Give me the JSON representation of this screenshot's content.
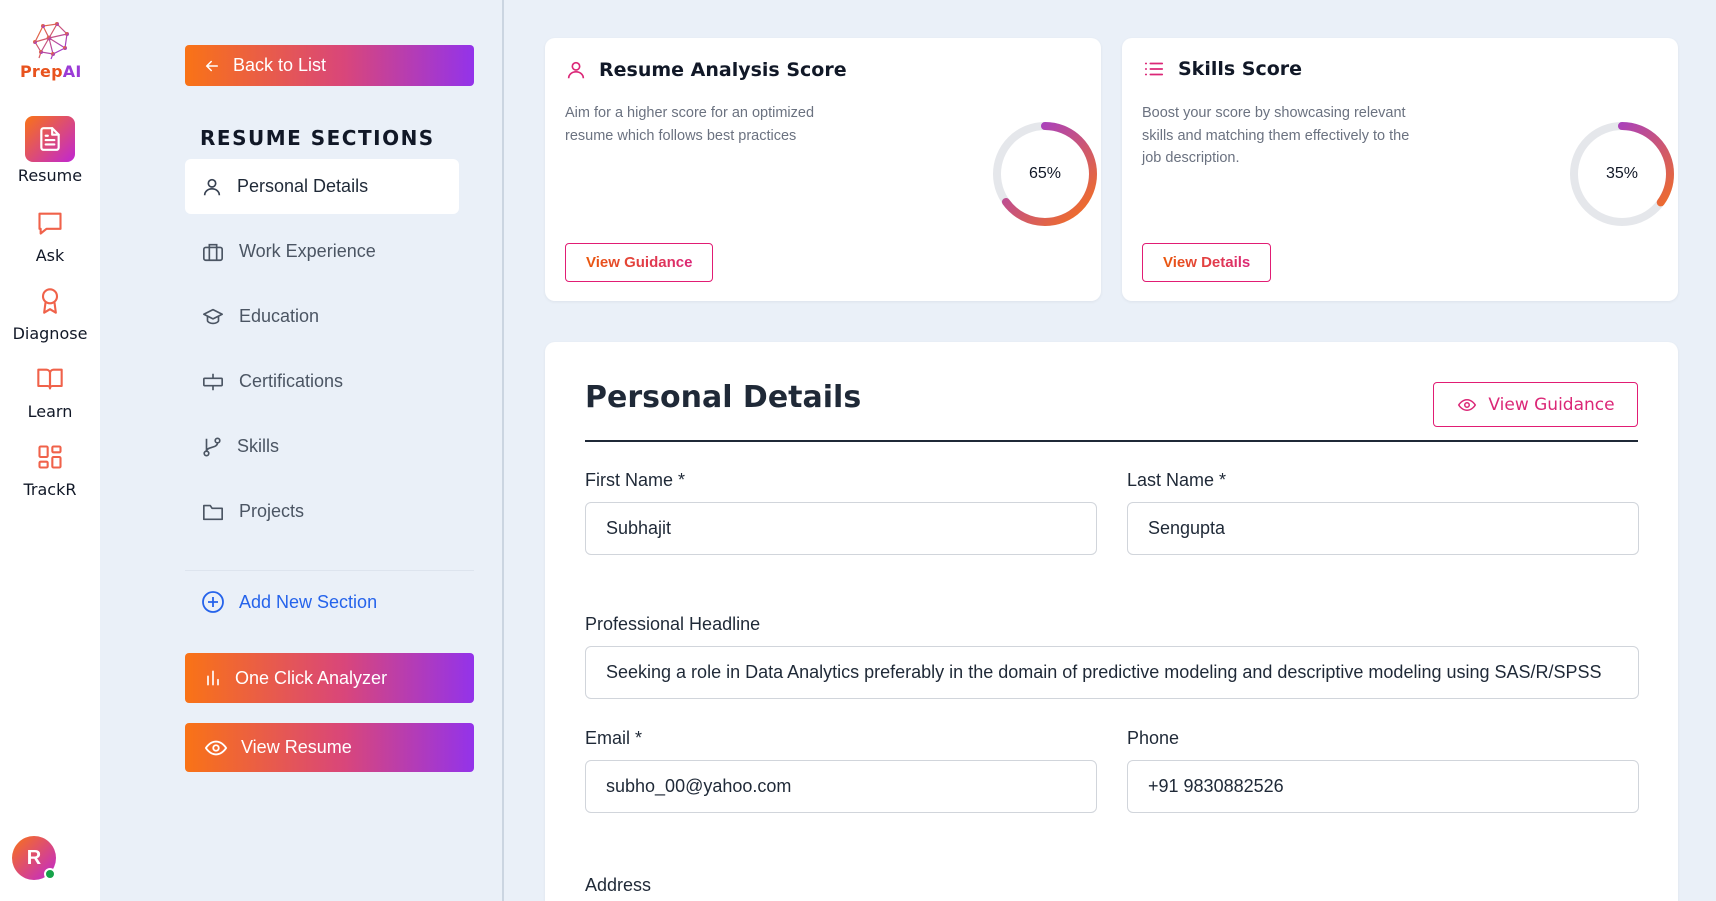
{
  "app": {
    "logo_text_prefix": "Prep",
    "logo_text_suffix": "AI"
  },
  "rail": {
    "items": [
      {
        "label": "Resume",
        "icon": "document-icon",
        "active": true
      },
      {
        "label": "Ask",
        "icon": "chat-icon",
        "active": false
      },
      {
        "label": "Diagnose",
        "icon": "award-icon",
        "active": false
      },
      {
        "label": "Learn",
        "icon": "book-icon",
        "active": false
      },
      {
        "label": "TrackR",
        "icon": "grid-icon",
        "active": false
      }
    ],
    "avatar_initial": "R",
    "avatar_status_color": "#16a34a"
  },
  "sections_panel": {
    "back_label": "Back to List",
    "heading": "RESUME SECTIONS",
    "items": [
      {
        "label": "Personal Details",
        "icon": "user-icon",
        "active": true
      },
      {
        "label": "Work Experience",
        "icon": "briefcase-icon",
        "active": false
      },
      {
        "label": "Education",
        "icon": "graduation-cap-icon",
        "active": false
      },
      {
        "label": "Certifications",
        "icon": "certificate-icon",
        "active": false
      },
      {
        "label": "Skills",
        "icon": "branch-icon",
        "active": false
      },
      {
        "label": "Projects",
        "icon": "folder-icon",
        "active": false
      }
    ],
    "add_section_label": "Add New Section",
    "analyzer_label": "One Click Analyzer",
    "view_resume_label": "View Resume"
  },
  "scores": [
    {
      "title": "Resume Analysis Score",
      "icon": "user-icon",
      "description": "Aim for a higher score for an optimized resume which follows best practices",
      "button_label": "View Guidance",
      "percent_label": "65%",
      "percent_value": 65
    },
    {
      "title": "Skills Score",
      "icon": "list-icon",
      "description": "Boost your score by showcasing relevant skills and matching them effectively to the job description.",
      "button_label": "View Details",
      "percent_label": "35%",
      "percent_value": 35
    }
  ],
  "personal_details": {
    "title": "Personal Details",
    "guidance_label": "View Guidance",
    "first_name_label": "First Name *",
    "first_name_value": "Subhajit",
    "last_name_label": "Last Name *",
    "last_name_value": "Sengupta",
    "headline_label": "Professional Headline",
    "headline_value": "Seeking a role in Data Analytics preferably in the domain of predictive modeling and descriptive modeling using SAS/R/SPSS",
    "email_label": "Email *",
    "email_value": "subho_00@yahoo.com",
    "phone_label": "Phone",
    "phone_value": "+91 9830882526",
    "address_label": "Address"
  },
  "colors": {
    "accent_orange": "#f97316",
    "accent_purple": "#9333ea",
    "accent_pink": "#db2777",
    "link_blue": "#2563eb",
    "background": "#eaf0f8"
  }
}
